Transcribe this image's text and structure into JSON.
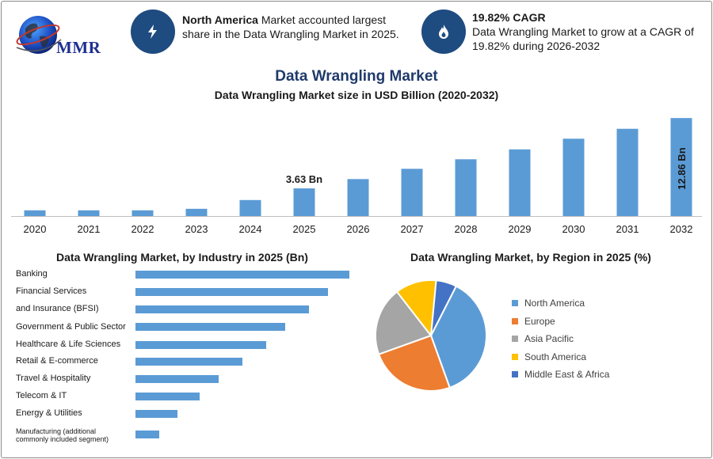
{
  "brand": {
    "logo_text": "MMR"
  },
  "header": {
    "info1": {
      "bold": "North America",
      "text_rest": " Market accounted largest",
      "line2": "share in the Data Wrangling Market in 2025.",
      "icon": "lightning-icon"
    },
    "info2": {
      "bold": "19.82% CAGR",
      "line2": "Data Wrangling Market to grow at a CAGR of",
      "line3": "19.82% during 2026-2032",
      "icon": "flame-icon"
    }
  },
  "colors": {
    "bar": "#5b9bd5",
    "title": "#1f3a6b",
    "icon_bg": "#1e4b80"
  },
  "chart_data": [
    {
      "type": "bar",
      "title": "Data Wrangling Market",
      "subtitle": "Data Wrangling Market size in USD Billion (2020-2032)",
      "categories": [
        "2020",
        "2021",
        "2022",
        "2023",
        "2024",
        "2025",
        "2026",
        "2027",
        "2028",
        "2029",
        "2030",
        "2031",
        "2032"
      ],
      "values": [
        0.75,
        0.75,
        0.75,
        0.95,
        2.1,
        3.63,
        4.85,
        6.2,
        7.45,
        8.75,
        10.15,
        11.45,
        12.86
      ],
      "data_labels": [
        {
          "index": 5,
          "text": "3.63 Bn"
        },
        {
          "index": 12,
          "text": "12.86 Bn"
        }
      ],
      "ylim": [
        0,
        13.5
      ],
      "grid": false,
      "xlabel": "",
      "ylabel": ""
    },
    {
      "type": "bar",
      "orientation": "horizontal",
      "title": "Data Wrangling Market, by Industry in 2025 (Bn)",
      "categories": [
        "Banking",
        "Financial Services",
        "and Insurance (BFSI)",
        "Government & Public Sector",
        "Healthcare & Life Sciences",
        "Retail & E-commerce",
        "Travel & Hospitality",
        "Telecom & IT",
        "Energy & Utilities",
        "Manufacturing (additional commonly included segment)"
      ],
      "values": [
        10,
        9,
        8.1,
        7,
        6.1,
        5,
        3.9,
        3,
        1.95,
        1.1
      ],
      "grid": false
    },
    {
      "type": "pie",
      "title": "Data Wrangling Market, by Region in 2025 (%)",
      "categories": [
        "North America",
        "Europe",
        "Asia Pacific",
        "South America",
        "Middle East & Africa"
      ],
      "values": [
        37,
        25,
        20,
        12,
        6
      ],
      "colors": [
        "#5b9bd5",
        "#ed7d31",
        "#a5a5a5",
        "#ffc000",
        "#4472c4"
      ],
      "legend": "right"
    }
  ]
}
